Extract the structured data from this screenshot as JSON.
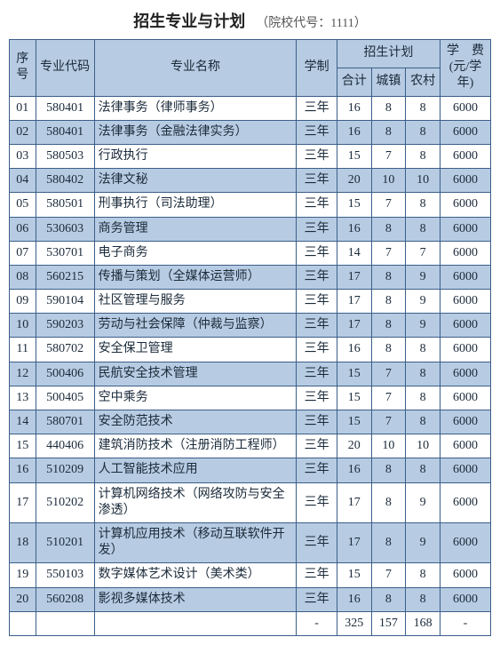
{
  "title": "招生专业与计划",
  "subtitle": "（院校代号：1111）",
  "header": {
    "idx": "序号",
    "code": "专业代码",
    "name": "专业名称",
    "duration": "学制",
    "planGroup": "招生计划",
    "total": "合计",
    "urban": "城镇",
    "rural": "农村",
    "fee": "学　费(元/学年)"
  },
  "rows": [
    {
      "idx": "01",
      "code": "580401",
      "name": "法律事务（律师事务）",
      "dur": "三年",
      "total": "16",
      "urban": "8",
      "rural": "8",
      "fee": "6000"
    },
    {
      "idx": "02",
      "code": "580401",
      "name": "法律事务（金融法律实务）",
      "dur": "三年",
      "total": "16",
      "urban": "8",
      "rural": "8",
      "fee": "6000"
    },
    {
      "idx": "03",
      "code": "580503",
      "name": "行政执行",
      "dur": "三年",
      "total": "15",
      "urban": "7",
      "rural": "8",
      "fee": "6000"
    },
    {
      "idx": "04",
      "code": "580402",
      "name": "法律文秘",
      "dur": "三年",
      "total": "20",
      "urban": "10",
      "rural": "10",
      "fee": "6000"
    },
    {
      "idx": "05",
      "code": "580501",
      "name": "刑事执行（司法助理）",
      "dur": "三年",
      "total": "15",
      "urban": "7",
      "rural": "8",
      "fee": "6000"
    },
    {
      "idx": "06",
      "code": "530603",
      "name": "商务管理",
      "dur": "三年",
      "total": "16",
      "urban": "8",
      "rural": "8",
      "fee": "6000"
    },
    {
      "idx": "07",
      "code": "530701",
      "name": "电子商务",
      "dur": "三年",
      "total": "14",
      "urban": "7",
      "rural": "7",
      "fee": "6000"
    },
    {
      "idx": "08",
      "code": "560215",
      "name": "传播与策划（全媒体运营师）",
      "dur": "三年",
      "total": "17",
      "urban": "8",
      "rural": "9",
      "fee": "6000"
    },
    {
      "idx": "09",
      "code": "590104",
      "name": "社区管理与服务",
      "dur": "三年",
      "total": "17",
      "urban": "8",
      "rural": "9",
      "fee": "6000"
    },
    {
      "idx": "10",
      "code": "590203",
      "name": "劳动与社会保障（仲裁与监察）",
      "dur": "三年",
      "total": "17",
      "urban": "8",
      "rural": "9",
      "fee": "6000"
    },
    {
      "idx": "11",
      "code": "580702",
      "name": "安全保卫管理",
      "dur": "三年",
      "total": "16",
      "urban": "8",
      "rural": "8",
      "fee": "6000"
    },
    {
      "idx": "12",
      "code": "500406",
      "name": "民航安全技术管理",
      "dur": "三年",
      "total": "15",
      "urban": "7",
      "rural": "8",
      "fee": "6000"
    },
    {
      "idx": "13",
      "code": "500405",
      "name": "空中乘务",
      "dur": "三年",
      "total": "15",
      "urban": "7",
      "rural": "8",
      "fee": "6000"
    },
    {
      "idx": "14",
      "code": "580701",
      "name": "安全防范技术",
      "dur": "三年",
      "total": "15",
      "urban": "7",
      "rural": "8",
      "fee": "6000"
    },
    {
      "idx": "15",
      "code": "440406",
      "name": "建筑消防技术（注册消防工程师）",
      "dur": "三年",
      "total": "20",
      "urban": "10",
      "rural": "10",
      "fee": "6000"
    },
    {
      "idx": "16",
      "code": "510209",
      "name": "人工智能技术应用",
      "dur": "三年",
      "total": "16",
      "urban": "8",
      "rural": "8",
      "fee": "6000"
    },
    {
      "idx": "17",
      "code": "510202",
      "name": "计算机网络技术（网络攻防与安全渗透）",
      "dur": "三年",
      "total": "17",
      "urban": "8",
      "rural": "9",
      "fee": "6000"
    },
    {
      "idx": "18",
      "code": "510201",
      "name": "计算机应用技术（移动互联软件开发）",
      "dur": "三年",
      "total": "17",
      "urban": "8",
      "rural": "9",
      "fee": "6000"
    },
    {
      "idx": "19",
      "code": "550103",
      "name": "数字媒体艺术设计（美术类）",
      "dur": "三年",
      "total": "15",
      "urban": "7",
      "rural": "8",
      "fee": "6000"
    },
    {
      "idx": "20",
      "code": "560208",
      "name": "影视多媒体技术",
      "dur": "三年",
      "total": "16",
      "urban": "8",
      "rural": "8",
      "fee": "6000"
    }
  ],
  "totals": {
    "idx": "",
    "code": "",
    "name": "",
    "dur": "-",
    "total": "325",
    "urban": "157",
    "rural": "168",
    "fee": "-"
  },
  "style": {
    "border_color": "#3b5e8a",
    "header_bg": "#b7cce2",
    "zebra_bg": "#b7cce2",
    "row_bg": "#ffffff",
    "text_color": "#1a2a3a",
    "font_family": "SimSun",
    "title_fontsize": 18,
    "cell_fontsize": 14
  }
}
